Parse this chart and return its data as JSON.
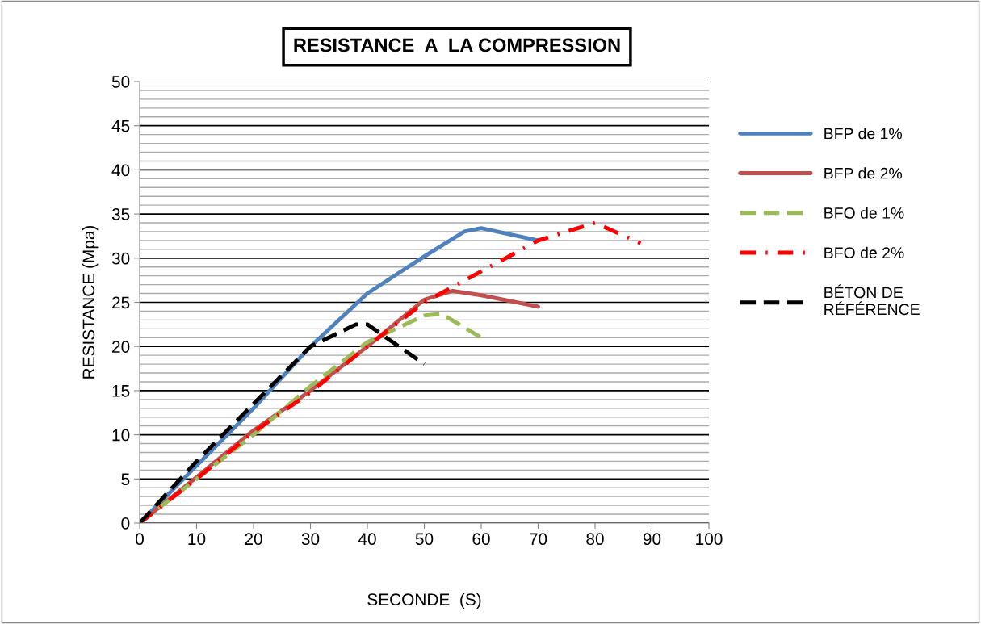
{
  "chart_data": {
    "type": "line",
    "title": "RESISTANCE  A  LA COMPRESSION",
    "xlabel": "SECONDE  (S)",
    "ylabel": "RESISTANCE (Mpa)",
    "xlim": [
      0,
      100
    ],
    "xticks": [
      0,
      10,
      20,
      30,
      40,
      50,
      60,
      70,
      80,
      90,
      100
    ],
    "ylim": [
      0,
      50
    ],
    "yticks": [
      0,
      5,
      10,
      15,
      20,
      25,
      30,
      35,
      40,
      45,
      50
    ],
    "grid": "y",
    "legend": "right",
    "marker": "none",
    "series": [
      {
        "name": "BFP de 1%",
        "color": "#4f81bd",
        "line_style": "solid",
        "x": [
          0,
          10,
          20,
          30,
          40,
          50,
          57,
          60,
          70
        ],
        "values": [
          0,
          6.5,
          13,
          20,
          26,
          30.2,
          33,
          33.4,
          32
        ]
      },
      {
        "name": "BFP de 2%",
        "color": "#c0504d",
        "line_style": "solid",
        "x": [
          0,
          10,
          20,
          30,
          40,
          50,
          55,
          60,
          70
        ],
        "values": [
          0,
          5.2,
          10.5,
          15,
          20,
          25.3,
          26.3,
          25.8,
          24.5
        ]
      },
      {
        "name": "BFO de 1%",
        "color": "#9bbb59",
        "line_style": "dashed",
        "x": [
          0,
          10,
          20,
          30,
          40,
          50,
          53,
          60
        ],
        "values": [
          0,
          5,
          10,
          15.5,
          20.5,
          23.5,
          23.7,
          21
        ]
      },
      {
        "name": "BFO de 2%",
        "color": "#ff0000",
        "line_style": "dashdot",
        "x": [
          0,
          10,
          20,
          30,
          40,
          50,
          60,
          70,
          80,
          88
        ],
        "values": [
          0,
          5,
          10.3,
          14.8,
          20,
          25,
          28.5,
          32,
          34,
          31.7
        ]
      },
      {
        "name": "BÉTON DE\nRÉFÉRENCE",
        "color": "#000000",
        "line_style": "dashed",
        "x": [
          0,
          10,
          20,
          30,
          38,
          40,
          50
        ],
        "values": [
          0,
          7,
          13.5,
          20,
          22.5,
          22.5,
          18
        ]
      }
    ]
  }
}
